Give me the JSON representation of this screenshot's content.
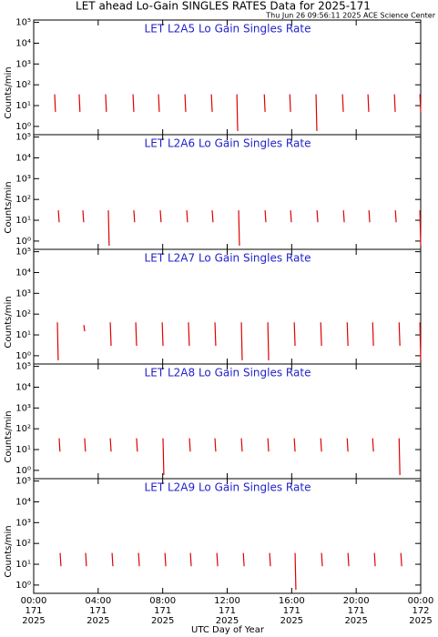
{
  "title": "LET ahead Lo-Gain SINGLES RATES Data for 2025-171",
  "subtitle": "Thu Jun 26 09:56:11 2025 ACE Science Center",
  "x_label": "UTC Day of Year",
  "chart_data": [
    {
      "type": "line",
      "title": "LET L2A5 Lo Gain Singles Rate",
      "ylabel": "Counts/min",
      "color": "#e00000",
      "log_y": true,
      "xlim": [
        0,
        24
      ],
      "xticks": [
        0,
        4,
        8,
        12,
        16,
        20,
        24
      ],
      "ylim": [
        0.4,
        130000
      ],
      "yticks": [
        {
          "value": 1,
          "label": "10⁰"
        },
        {
          "value": 10,
          "label": "10¹"
        },
        {
          "value": 100,
          "label": "10²"
        },
        {
          "value": 1000,
          "label": "10³"
        },
        {
          "value": 10000,
          "label": "10⁴"
        },
        {
          "value": 100000,
          "label": "10⁵"
        }
      ],
      "x": [
        1.3,
        1.35,
        1.35,
        2.82,
        2.87,
        2.87,
        4.46,
        4.51,
        4.51,
        6.16,
        6.21,
        6.21,
        7.74,
        7.79,
        7.79,
        9.38,
        9.43,
        9.43,
        11.02,
        11.07,
        11.07,
        12.6,
        12.65,
        12.65,
        14.3,
        14.35,
        14.35,
        15.88,
        15.93,
        15.93,
        17.51,
        17.56,
        17.56,
        19.15,
        19.2,
        19.2,
        20.73,
        20.78,
        20.78,
        22.37,
        22.42,
        22.42,
        23.95,
        24
      ],
      "values": [
        35,
        5,
        null,
        35,
        5,
        null,
        35,
        5,
        null,
        35,
        5,
        null,
        35,
        5,
        null,
        35,
        5,
        null,
        35,
        5,
        null,
        35,
        0.6,
        null,
        35,
        5,
        null,
        35,
        5,
        null,
        35,
        0.6,
        null,
        35,
        5,
        null,
        35,
        5,
        null,
        35,
        5,
        null,
        35,
        5
      ]
    },
    {
      "type": "line",
      "title": "LET L2A6 Lo Gain Singles Rate",
      "ylabel": "Counts/min",
      "color": "#e00000",
      "log_y": true,
      "xlim": [
        0,
        24
      ],
      "xticks": [
        0,
        4,
        8,
        12,
        16,
        20,
        24
      ],
      "ylim": [
        0.4,
        130000
      ],
      "yticks": [
        {
          "value": 1,
          "label": "10⁰"
        },
        {
          "value": 10,
          "label": "10¹"
        },
        {
          "value": 100,
          "label": "10²"
        },
        {
          "value": 1000,
          "label": "10³"
        },
        {
          "value": 10000,
          "label": "10⁴"
        },
        {
          "value": 100000,
          "label": "10⁵"
        }
      ],
      "x": [
        1.53,
        1.58,
        1.58,
        3.05,
        3.1,
        3.1,
        4.63,
        4.68,
        4.68,
        6.21,
        6.26,
        6.26,
        7.85,
        7.9,
        7.9,
        9.49,
        9.54,
        9.54,
        11.07,
        11.12,
        11.12,
        12.71,
        12.76,
        12.76,
        14.35,
        14.4,
        14.4,
        15.93,
        15.98,
        15.98,
        17.57,
        17.62,
        17.62,
        19.21,
        19.26,
        19.26,
        20.79,
        20.84,
        20.84,
        22.43,
        22.48,
        22.48,
        23.95,
        24
      ],
      "values": [
        30,
        8,
        null,
        30,
        8,
        null,
        30,
        0.6,
        null,
        30,
        8,
        null,
        30,
        8,
        null,
        30,
        8,
        null,
        30,
        8,
        null,
        30,
        0.6,
        null,
        30,
        8,
        null,
        30,
        8,
        null,
        30,
        8,
        null,
        30,
        8,
        null,
        30,
        8,
        null,
        30,
        8,
        null,
        30,
        0.6
      ]
    },
    {
      "type": "line",
      "title": "LET L2A7 Lo Gain Singles Rate",
      "ylabel": "Counts/min",
      "color": "#e00000",
      "log_y": true,
      "xlim": [
        0,
        24
      ],
      "xticks": [
        0,
        4,
        8,
        12,
        16,
        20,
        24
      ],
      "ylim": [
        0.4,
        130000
      ],
      "yticks": [
        {
          "value": 1,
          "label": "10⁰"
        },
        {
          "value": 10,
          "label": "10¹"
        },
        {
          "value": 100,
          "label": "10²"
        },
        {
          "value": 1000,
          "label": "10³"
        },
        {
          "value": 10000,
          "label": "10⁴"
        },
        {
          "value": 100000,
          "label": "10⁵"
        }
      ],
      "x": [
        1.47,
        1.52,
        1.52,
        3.11,
        3.16,
        3.16,
        4.75,
        4.8,
        4.8,
        6.33,
        6.38,
        6.38,
        7.97,
        8.02,
        8.02,
        9.6,
        9.65,
        9.65,
        11.24,
        11.29,
        11.29,
        12.88,
        12.93,
        12.93,
        14.52,
        14.57,
        14.57,
        16.16,
        16.21,
        16.21,
        17.8,
        17.85,
        17.85,
        19.44,
        19.49,
        19.49,
        21.02,
        21.07,
        21.07,
        22.66,
        22.71,
        22.71,
        23.95,
        24
      ],
      "values": [
        40,
        0.6,
        null,
        30,
        15,
        null,
        40,
        3,
        null,
        40,
        3,
        null,
        40,
        3,
        null,
        40,
        3,
        null,
        40,
        3,
        null,
        40,
        0.6,
        null,
        40,
        0.6,
        null,
        40,
        3,
        null,
        40,
        3,
        null,
        40,
        3,
        null,
        40,
        3,
        null,
        40,
        3,
        null,
        40,
        0.6
      ]
    },
    {
      "type": "line",
      "title": "LET L2A8 Lo Gain Singles Rate",
      "ylabel": "Counts/min",
      "color": "#e00000",
      "log_y": true,
      "xlim": [
        0,
        24
      ],
      "xticks": [
        0,
        4,
        8,
        12,
        16,
        20,
        24
      ],
      "ylim": [
        0.4,
        130000
      ],
      "yticks": [
        {
          "value": 1,
          "label": "10⁰"
        },
        {
          "value": 10,
          "label": "10¹"
        },
        {
          "value": 100,
          "label": "10²"
        },
        {
          "value": 1000,
          "label": "10³"
        },
        {
          "value": 10000,
          "label": "10⁴"
        },
        {
          "value": 100000,
          "label": "10⁵"
        }
      ],
      "x": [
        1.58,
        1.63,
        1.63,
        3.16,
        3.21,
        3.21,
        4.75,
        4.8,
        4.8,
        6.38,
        6.43,
        6.43,
        8.02,
        8.07,
        8.07,
        9.66,
        9.71,
        9.71,
        11.24,
        11.29,
        11.29,
        12.88,
        12.93,
        12.93,
        14.52,
        14.57,
        14.57,
        16.16,
        16.21,
        16.21,
        17.8,
        17.85,
        17.85,
        19.44,
        19.49,
        19.49,
        21.02,
        21.07,
        21.07,
        22.66,
        22.71
      ],
      "values": [
        35,
        8,
        null,
        35,
        8,
        null,
        35,
        8,
        null,
        35,
        8,
        null,
        35,
        0.6,
        null,
        35,
        8,
        null,
        35,
        8,
        null,
        35,
        8,
        null,
        35,
        8,
        null,
        35,
        8,
        null,
        35,
        8,
        null,
        35,
        8,
        null,
        35,
        8,
        null,
        35,
        0.6
      ]
    },
    {
      "type": "line",
      "title": "LET L2A9 Lo Gain Singles Rate",
      "ylabel": "Counts/min",
      "color": "#e00000",
      "log_y": true,
      "xlim": [
        0,
        24
      ],
      "xticks": [
        {
          "value": 0,
          "label": "00:00 171 2025"
        },
        {
          "value": 4,
          "label": "04:00 171 2025"
        },
        {
          "value": 8,
          "label": "08:00 171 2025"
        },
        {
          "value": 12,
          "label": "12:00 171 2025"
        },
        {
          "value": 16,
          "label": "16:00 171 2025"
        },
        {
          "value": 20,
          "label": "20:00 171 2025"
        },
        {
          "value": 24,
          "label": "00:00 172 2025"
        }
      ],
      "ylim": [
        0.4,
        130000
      ],
      "yticks": [
        {
          "value": 1,
          "label": "10⁰"
        },
        {
          "value": 10,
          "label": "10¹"
        },
        {
          "value": 100,
          "label": "10²"
        },
        {
          "value": 1000,
          "label": "10³"
        },
        {
          "value": 10000,
          "label": "10⁴"
        },
        {
          "value": 100000,
          "label": "10⁵"
        }
      ],
      "x": [
        1.64,
        1.69,
        1.69,
        3.22,
        3.27,
        3.27,
        4.86,
        4.91,
        4.91,
        6.5,
        6.55,
        6.55,
        8.14,
        8.19,
        8.19,
        9.72,
        9.77,
        9.77,
        11.36,
        11.41,
        11.41,
        13.0,
        13.05,
        13.05,
        14.63,
        14.68,
        14.68,
        16.21,
        16.26,
        16.26,
        17.85,
        17.9,
        17.9,
        19.49,
        19.54,
        19.54,
        21.13,
        21.18,
        21.18,
        22.77,
        22.82
      ],
      "values": [
        35,
        8,
        null,
        35,
        8,
        null,
        35,
        8,
        null,
        35,
        8,
        null,
        35,
        8,
        null,
        35,
        8,
        null,
        35,
        8,
        null,
        35,
        8,
        null,
        35,
        8,
        null,
        35,
        0.6,
        null,
        35,
        8,
        null,
        35,
        8,
        null,
        35,
        8,
        null,
        35,
        8
      ]
    }
  ]
}
